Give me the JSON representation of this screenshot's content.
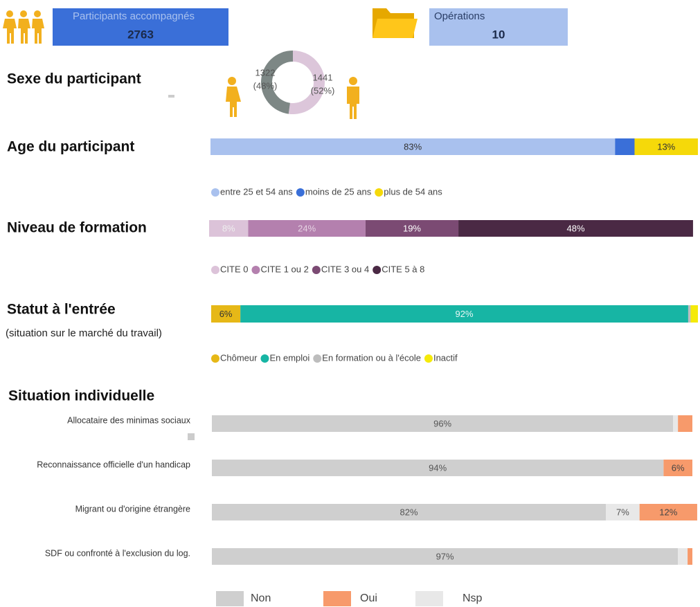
{
  "cards": [
    {
      "label": "Participants accompagnés",
      "value": 2763
    },
    {
      "label": "Opérations",
      "value": 10
    }
  ],
  "chart_data": [
    {
      "type": "donut",
      "title": "Sexe du participant",
      "values": [
        1322,
        1441
      ],
      "percent_labels": [
        "(48%)",
        "(52%)"
      ],
      "colors": [
        "#7d8785",
        "#dcc6da"
      ]
    },
    {
      "type": "stacked-bar",
      "title": "Age du participant",
      "xlim": [
        0,
        100
      ],
      "series": [
        {
          "name": "entre 25 et 54 ans",
          "color": "#a9c1ee",
          "label_color": "#333",
          "values": [
            83
          ],
          "value_labels": [
            "83%"
          ]
        },
        {
          "name": "moins de 25 ans",
          "color": "#3a6fd8",
          "label_color": "#333",
          "values": [
            4
          ],
          "value_labels": [
            null
          ]
        },
        {
          "name": "plus de 54 ans",
          "color": "#f5d90a",
          "label_color": "#333",
          "values": [
            13
          ],
          "value_labels": [
            "13%"
          ]
        }
      ]
    },
    {
      "type": "stacked-bar",
      "title": "Niveau de formation",
      "xlim": [
        0,
        100
      ],
      "series": [
        {
          "name": "CITE 0",
          "color": "#dcc3d9",
          "label_color": "#eee",
          "values": [
            8
          ],
          "value_labels": [
            "8%"
          ]
        },
        {
          "name": "CITE 1 ou 2",
          "color": "#b480ae",
          "label_color": "#e6d3e3",
          "values": [
            24
          ],
          "value_labels": [
            "24%"
          ]
        },
        {
          "name": "CITE 3 ou 4",
          "color": "#7b4a73",
          "label_color": "#fff",
          "values": [
            19
          ],
          "value_labels": [
            "19%"
          ]
        },
        {
          "name": "CITE 5 à 8",
          "color": "#4a2944",
          "label_color": "#fff",
          "values": [
            48
          ],
          "value_labels": [
            "48%"
          ]
        }
      ]
    },
    {
      "type": "stacked-bar",
      "title": "Statut à l'entrée",
      "subtitle": "(situation sur le marché du travail)",
      "xlim": [
        0,
        100
      ],
      "series": [
        {
          "name": "Chômeur",
          "color": "#e6b817",
          "label_color": "#333",
          "values": [
            6
          ],
          "value_labels": [
            "6%"
          ]
        },
        {
          "name": "En emploi",
          "color": "#17b5a4",
          "label_color": "#e8f7f5",
          "values": [
            92
          ],
          "value_labels": [
            "92%"
          ]
        },
        {
          "name": "En formation ou à l'école",
          "color": "#bdbdbd",
          "label_color": "#333",
          "values": [
            0.5
          ],
          "value_labels": [
            null
          ]
        },
        {
          "name": "Inactif",
          "color": "#f5ea0a",
          "label_color": "#333",
          "values": [
            1.5
          ],
          "value_labels": [
            null
          ]
        }
      ]
    },
    {
      "type": "stacked-bar",
      "title": "Situation individuelle",
      "xlim": [
        0,
        100
      ],
      "categories": [
        "Allocataire des minimas sociaux",
        "Reconnaissance officielle d'un handicap",
        "Migrant ou d'origine étrangère",
        "SDF ou confronté à l'exclusion du log."
      ],
      "series": [
        {
          "name": "Non",
          "color": "#cfcfcf",
          "label_color": "#555",
          "values": [
            96,
            94,
            82,
            97
          ],
          "value_labels": [
            "96%",
            "94%",
            "82%",
            "97%"
          ]
        },
        {
          "name": "Oui",
          "color": "#f79a6b",
          "label_color": "#444",
          "values": [
            3,
            6,
            12,
            1
          ],
          "value_labels": [
            null,
            "6%",
            "12%",
            null
          ]
        },
        {
          "name": "Nsp",
          "color": "#e8e8e8",
          "label_color": "#555",
          "values": [
            1,
            0,
            7,
            2
          ],
          "value_labels": [
            null,
            null,
            "7%",
            null
          ]
        }
      ]
    }
  ]
}
